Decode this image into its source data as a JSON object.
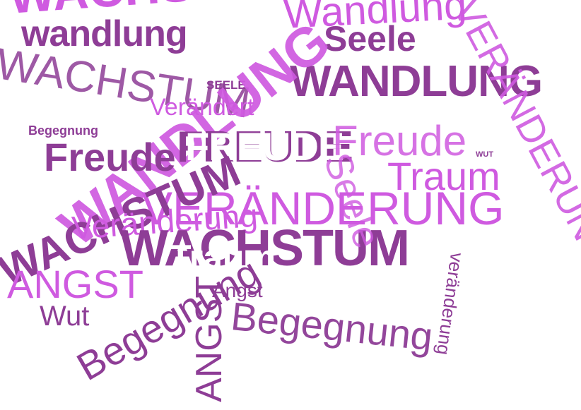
{
  "words": {
    "w01": "WACHSTUM",
    "w02": "Wandlung",
    "w03": "wandlung",
    "w04": "WACHSTUM",
    "w05": "Seele",
    "w06": "WANDLUNG",
    "w07": "SEELE",
    "w08": "Veränderung",
    "w09": "Begegnung",
    "w10": "FREUDE",
    "w11": "Freude",
    "w12": "WUT",
    "w13": "Traum",
    "w14": "VERÄNDERUNG",
    "w15": "Veränderung",
    "w16": "WACHSTUM",
    "w17": "Traum",
    "w18": "ANGST",
    "w19": "Angst",
    "w20": "Wut",
    "w21": "Begegnung",
    "w22": "FREUDE",
    "w23": "ANGST",
    "w24": "veränderung",
    "w25": "WANDLUNG",
    "w26": "WACHSTUM",
    "w27": "VERÄNDERUNG",
    "w28": "Freude",
    "w29": "Begegnung",
    "w30": "Seele",
    "w31": "Verändert"
  },
  "colors": {
    "dark": "#8e3d96",
    "light": "#cf5ae0",
    "background": "#ffffff"
  }
}
